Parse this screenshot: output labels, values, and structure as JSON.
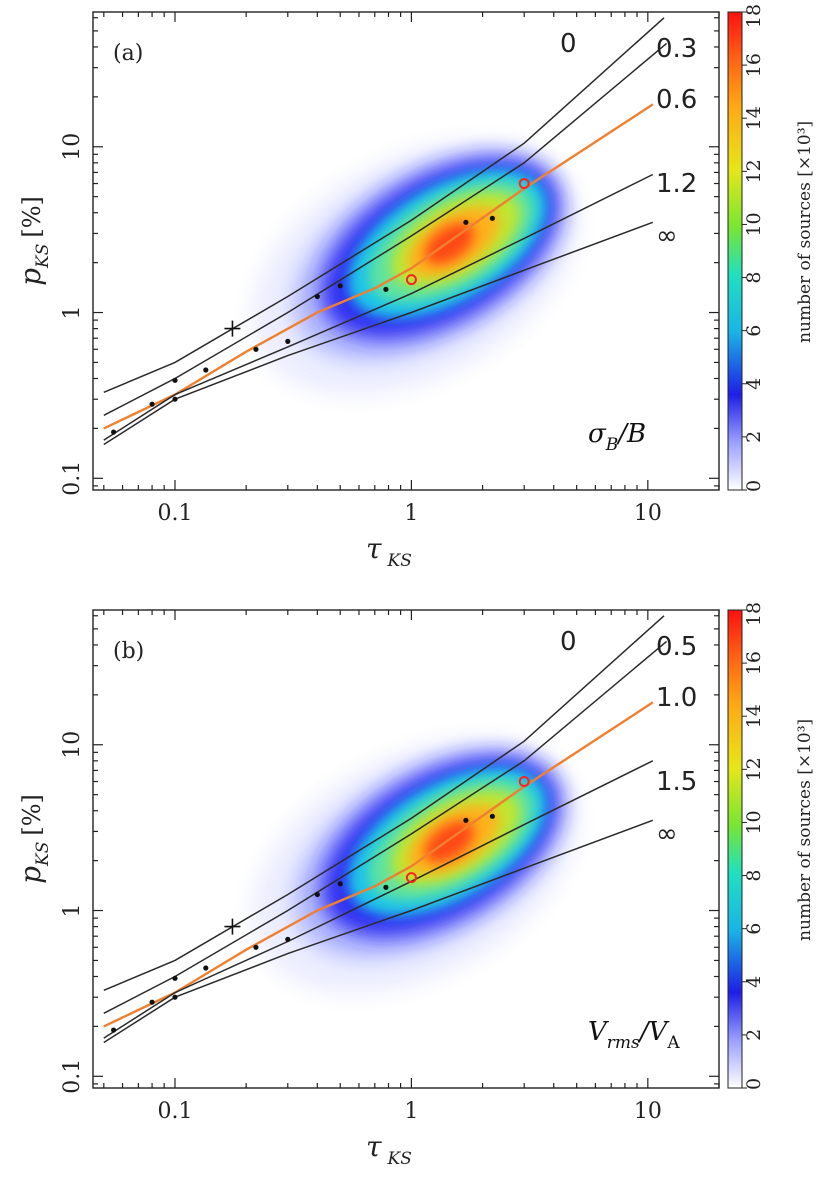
{
  "colors": {
    "curve": "#2a2a2a",
    "highlight": "#f08030",
    "observed": "#ff2020",
    "points": "#111111"
  },
  "chart_data": [
    {
      "panel_label": "(a)",
      "type": "scatter",
      "xlabel": "τ",
      "xlabel_sub": "KS",
      "ylabel": "p",
      "ylabel_sub": "KS",
      "ylabel_unit": "[%]",
      "xlim": [
        0.045,
        20
      ],
      "ylim": [
        0.085,
        65
      ],
      "xscale": "log",
      "yscale": "log",
      "x_ticks": [
        "0.1",
        "1",
        "10"
      ],
      "y_ticks": [
        "0.1",
        "1",
        "10"
      ],
      "parameter_label": "σB/B",
      "parameter_main": "σ",
      "parameter_sub": "B",
      "parameter_tail": "/B",
      "highlight_curve": "0.6",
      "curves": [
        {
          "label": "0",
          "x": [
            0.05,
            0.1,
            0.3,
            1,
            3,
            11.7
          ],
          "y": [
            0.33,
            0.5,
            1.25,
            3.6,
            10.5,
            60
          ]
        },
        {
          "label": "0.3",
          "x": [
            0.05,
            0.1,
            0.3,
            1,
            3,
            12
          ],
          "y": [
            0.24,
            0.4,
            1.0,
            2.9,
            8.0,
            42
          ]
        },
        {
          "label": "0.6",
          "x": [
            0.05,
            0.1,
            0.2,
            0.4,
            0.7,
            1,
            3,
            10.5
          ],
          "y": [
            0.2,
            0.32,
            0.58,
            1.0,
            1.4,
            1.85,
            5.6,
            18
          ]
        },
        {
          "label": "1.2",
          "x": [
            0.05,
            0.1,
            0.3,
            1,
            3,
            10.5
          ],
          "y": [
            0.17,
            0.32,
            0.62,
            1.3,
            2.8,
            6.8
          ]
        },
        {
          "label": "∞",
          "x": [
            0.05,
            0.1,
            0.3,
            1,
            3,
            10.5
          ],
          "y": [
            0.16,
            0.3,
            0.55,
            1.0,
            1.8,
            3.5
          ]
        }
      ],
      "model_points": {
        "x": [
          0.055,
          0.08,
          0.1,
          0.1,
          0.135,
          0.22,
          0.3,
          0.4,
          0.5,
          0.78,
          1.7,
          2.2
        ],
        "y": [
          0.19,
          0.28,
          0.39,
          0.3,
          0.45,
          0.6,
          0.67,
          1.25,
          1.45,
          1.38,
          3.5,
          3.7
        ]
      },
      "observed_points": {
        "x": [
          1.0,
          3.0
        ],
        "y": [
          1.58,
          6.0
        ]
      },
      "plus_marker": {
        "x": 0.175,
        "y": 0.8
      },
      "density": {
        "center_x": 1.45,
        "center_y": 2.6,
        "peak": 18
      },
      "colorbar": {
        "label": "number of sources [×10³]",
        "min": 0,
        "max": 18,
        "ticks": [
          "0",
          "2",
          "4",
          "6",
          "8",
          "10",
          "12",
          "14",
          "16",
          "18"
        ]
      }
    },
    {
      "panel_label": "(b)",
      "type": "scatter",
      "xlabel": "τ",
      "xlabel_sub": "KS",
      "ylabel": "p",
      "ylabel_sub": "KS",
      "ylabel_unit": "[%]",
      "xlim": [
        0.045,
        20
      ],
      "ylim": [
        0.085,
        65
      ],
      "xscale": "log",
      "yscale": "log",
      "x_ticks": [
        "0.1",
        "1",
        "10"
      ],
      "y_ticks": [
        "0.1",
        "1",
        "10"
      ],
      "parameter_label": "Vrms/VA",
      "parameter_main": "V",
      "parameter_sub": "rms",
      "parameter_tail": "/V",
      "parameter_tail_sub": "A",
      "highlight_curve": "1.0",
      "curves": [
        {
          "label": "0",
          "x": [
            0.05,
            0.1,
            0.3,
            1,
            3,
            11.7
          ],
          "y": [
            0.33,
            0.5,
            1.25,
            3.6,
            10.5,
            60
          ]
        },
        {
          "label": "0.5",
          "x": [
            0.05,
            0.1,
            0.3,
            1,
            3,
            12
          ],
          "y": [
            0.24,
            0.4,
            1.0,
            2.9,
            8.0,
            42
          ]
        },
        {
          "label": "1.0",
          "x": [
            0.05,
            0.1,
            0.2,
            0.4,
            0.7,
            1,
            3,
            10.5
          ],
          "y": [
            0.2,
            0.32,
            0.58,
            1.0,
            1.4,
            1.85,
            5.6,
            18
          ]
        },
        {
          "label": "1.5",
          "x": [
            0.05,
            0.1,
            0.3,
            1,
            3,
            10.5
          ],
          "y": [
            0.17,
            0.32,
            0.65,
            1.5,
            3.3,
            8.0
          ]
        },
        {
          "label": "∞",
          "x": [
            0.05,
            0.1,
            0.3,
            1,
            3,
            10.5
          ],
          "y": [
            0.16,
            0.3,
            0.55,
            1.0,
            1.8,
            3.5
          ]
        }
      ],
      "model_points": {
        "x": [
          0.055,
          0.08,
          0.1,
          0.1,
          0.135,
          0.22,
          0.3,
          0.4,
          0.5,
          0.78,
          1.7,
          2.2
        ],
        "y": [
          0.19,
          0.28,
          0.39,
          0.3,
          0.45,
          0.6,
          0.67,
          1.25,
          1.45,
          1.38,
          3.5,
          3.7
        ]
      },
      "observed_points": {
        "x": [
          1.0,
          3.0
        ],
        "y": [
          1.58,
          6.0
        ]
      },
      "plus_marker": {
        "x": 0.175,
        "y": 0.8
      },
      "density": {
        "center_x": 1.45,
        "center_y": 2.6,
        "peak": 18
      },
      "colorbar": {
        "label": "number of sources [×10³]",
        "min": 0,
        "max": 18,
        "ticks": [
          "0",
          "2",
          "4",
          "6",
          "8",
          "10",
          "12",
          "14",
          "16",
          "18"
        ]
      }
    }
  ]
}
